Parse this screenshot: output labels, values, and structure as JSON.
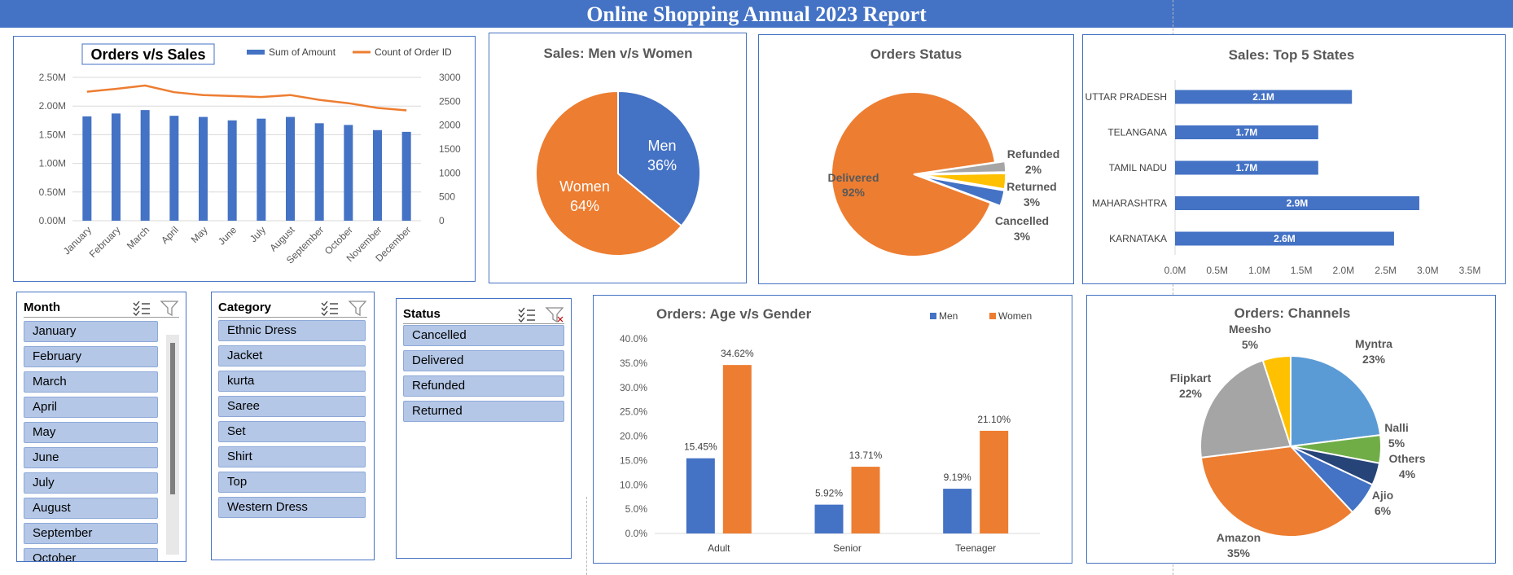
{
  "report": {
    "title": "Online Shopping Annual 2023 Report"
  },
  "colors": {
    "blue": "#4472c4",
    "orange": "#ed7d31",
    "gray": "#a5a5a5",
    "gold": "#ffc000",
    "lightblue": "#5b9bd5",
    "green": "#70ad47",
    "navy": "#264478"
  },
  "chart_data": [
    {
      "id": "orders_vs_sales",
      "type": "bar",
      "title": "Orders v/s Sales",
      "categories": [
        "January",
        "February",
        "March",
        "April",
        "May",
        "June",
        "July",
        "August",
        "September",
        "October",
        "November",
        "December"
      ],
      "series": [
        {
          "name": "Sum of Amount",
          "type": "bar",
          "axis": "left",
          "values": [
            1.82,
            1.87,
            1.93,
            1.83,
            1.81,
            1.75,
            1.78,
            1.81,
            1.7,
            1.67,
            1.58,
            1.55
          ]
        },
        {
          "name": "Count of Order ID",
          "type": "line",
          "axis": "right",
          "values": [
            2700,
            2760,
            2830,
            2690,
            2630,
            2610,
            2590,
            2630,
            2530,
            2460,
            2360,
            2310
          ]
        }
      ],
      "ylim_left": [
        0,
        2.5
      ],
      "yticks_left": [
        "0.00M",
        "0.50M",
        "1.00M",
        "1.50M",
        "2.00M",
        "2.50M"
      ],
      "ylim_right": [
        0,
        3000
      ],
      "yticks_right": [
        "0",
        "500",
        "1000",
        "1500",
        "2000",
        "2500",
        "3000"
      ],
      "legend": "top-right"
    },
    {
      "id": "sales_gender",
      "type": "pie",
      "title": "Sales: Men v/s Women",
      "labels": [
        "Men",
        "Women"
      ],
      "values": [
        36,
        64
      ],
      "value_labels": [
        "36%",
        "64%"
      ]
    },
    {
      "id": "orders_status",
      "type": "pie",
      "title": "Orders Status",
      "labels": [
        "Delivered",
        "Cancelled",
        "Returned",
        "Refunded"
      ],
      "values": [
        92,
        3,
        3,
        2
      ],
      "value_labels": [
        "92%",
        "3%",
        "3%",
        "2%"
      ]
    },
    {
      "id": "top_states",
      "type": "bar",
      "orientation": "horizontal",
      "title": "Sales: Top 5 States",
      "categories": [
        "UTTAR PRADESH",
        "TELANGANA",
        "TAMIL NADU",
        "MAHARASHTRA",
        "KARNATAKA"
      ],
      "values": [
        2.1,
        1.7,
        1.7,
        2.9,
        2.6
      ],
      "value_labels": [
        "2.1M",
        "1.7M",
        "1.7M",
        "2.9M",
        "2.6M"
      ],
      "xlim": [
        0,
        3.5
      ],
      "xticks": [
        "0.0M",
        "0.5M",
        "1.0M",
        "1.5M",
        "2.0M",
        "2.5M",
        "3.0M",
        "3.5M"
      ]
    },
    {
      "id": "age_gender",
      "type": "bar",
      "title": "Orders: Age v/s Gender",
      "categories": [
        "Adult",
        "Senior",
        "Teenager"
      ],
      "series": [
        {
          "name": "Men",
          "values": [
            15.45,
            5.92,
            9.19
          ],
          "value_labels": [
            "15.45%",
            "5.92%",
            "9.19%"
          ]
        },
        {
          "name": "Women",
          "values": [
            34.62,
            13.71,
            21.1
          ],
          "value_labels": [
            "34.62%",
            "13.71%",
            "21.10%"
          ]
        }
      ],
      "ylim": [
        0,
        40
      ],
      "yticks": [
        "0.0%",
        "5.0%",
        "10.0%",
        "15.0%",
        "20.0%",
        "25.0%",
        "30.0%",
        "35.0%",
        "40.0%"
      ],
      "legend": "top-right"
    },
    {
      "id": "channels",
      "type": "pie",
      "title": "Orders: Channels",
      "labels": [
        "Myntra",
        "Nalli",
        "Others",
        "Ajio",
        "Amazon",
        "Flipkart",
        "Meesho"
      ],
      "values": [
        23,
        5,
        4,
        6,
        35,
        22,
        5
      ],
      "value_labels": [
        "23%",
        "5%",
        "4%",
        "6%",
        "35%",
        "22%",
        "5%"
      ]
    }
  ],
  "slicers": {
    "month": {
      "title": "Month",
      "items": [
        "January",
        "February",
        "March",
        "April",
        "May",
        "June",
        "July",
        "August",
        "September",
        "October"
      ]
    },
    "category": {
      "title": "Category",
      "items": [
        "Ethnic Dress",
        "Jacket",
        "kurta",
        "Saree",
        "Set",
        "Shirt",
        "Top",
        "Western Dress"
      ]
    },
    "status": {
      "title": "Status",
      "items": [
        "Cancelled",
        "Delivered",
        "Refunded",
        "Returned"
      ]
    }
  }
}
